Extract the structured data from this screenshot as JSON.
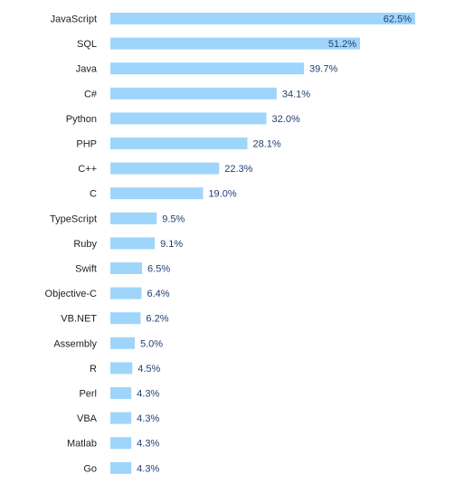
{
  "chart_data": {
    "type": "bar",
    "orientation": "horizontal",
    "categories": [
      "JavaScript",
      "SQL",
      "Java",
      "C#",
      "Python",
      "PHP",
      "C++",
      "C",
      "TypeScript",
      "Ruby",
      "Swift",
      "Objective-C",
      "VB.NET",
      "Assembly",
      "R",
      "Perl",
      "VBA",
      "Matlab",
      "Go"
    ],
    "values": [
      62.5,
      51.2,
      39.7,
      34.1,
      32.0,
      28.1,
      22.3,
      19.0,
      9.5,
      9.1,
      6.5,
      6.4,
      6.2,
      5.0,
      4.5,
      4.3,
      4.3,
      4.3,
      4.3
    ],
    "value_labels": [
      "62.5%",
      "51.2%",
      "39.7%",
      "34.1%",
      "32.0%",
      "28.1%",
      "22.3%",
      "19.0%",
      "9.5%",
      "9.1%",
      "6.5%",
      "6.4%",
      "6.2%",
      "5.0%",
      "4.5%",
      "4.3%",
      "4.3%",
      "4.3%",
      "4.3%"
    ],
    "title": "",
    "xlabel": "",
    "ylabel": "",
    "xlim": [
      0,
      62.5
    ],
    "grid": false,
    "legend": "none",
    "bar_color": "#9fd5fb",
    "value_label_color": "#1f3f73",
    "category_label_color": "#222222"
  }
}
